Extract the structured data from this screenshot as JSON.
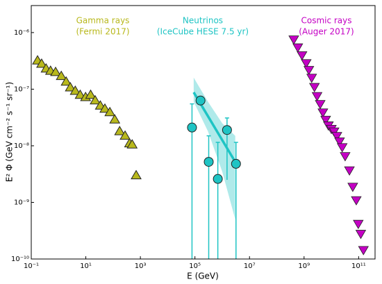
{
  "chart_data": {
    "type": "scatter",
    "xlabel": "E (GeV)",
    "ylabel": "E² Φ (GeV cm⁻² s⁻¹ sr⁻¹)",
    "log_x": true,
    "log_y": true,
    "xlim": [
      0.1,
      400000000000.0
    ],
    "ylim": [
      1e-10,
      3e-06
    ],
    "xticks": [
      {
        "value": 0.1,
        "label": "10⁻¹"
      },
      {
        "value": 10,
        "label": "10¹"
      },
      {
        "value": 1000,
        "label": "10³"
      },
      {
        "value": 100000,
        "label": "10⁵"
      },
      {
        "value": 10000000,
        "label": "10⁷"
      },
      {
        "value": 1000000000,
        "label": "10⁹"
      },
      {
        "value": 100000000000,
        "label": "10¹¹"
      }
    ],
    "yticks": [
      {
        "value": 1e-10,
        "label": "10⁻¹⁰"
      },
      {
        "value": 1e-09,
        "label": "10⁻⁹"
      },
      {
        "value": 1e-08,
        "label": "10⁻⁸"
      },
      {
        "value": 1e-07,
        "label": "10⁻⁷"
      },
      {
        "value": 1e-06,
        "label": "10⁻⁶"
      }
    ],
    "annotations": [
      {
        "lines": [
          "Gamma rays",
          "(Fermi 2017)"
        ],
        "color": "#b8b81c"
      },
      {
        "lines": [
          "Neutrinos",
          "(IceCube HESE 7.5 yr)"
        ],
        "color": "#1ec4c4"
      },
      {
        "lines": [
          "Cosmic rays",
          "(Auger 2017)"
        ],
        "color": "#c400c4"
      }
    ],
    "series": [
      {
        "marker": "triangle-up",
        "color": "#b8b81c",
        "x": [
          0.17,
          0.24,
          0.35,
          0.51,
          0.78,
          1.26,
          1.9,
          2.7,
          4.1,
          6.2,
          9.8,
          15,
          22,
          34,
          50,
          76,
          115,
          174,
          275,
          400,
          500,
          700
        ],
        "values": [
          3.2e-07,
          2.8e-07,
          2.3e-07,
          2.1e-07,
          2e-07,
          1.7e-07,
          1.35e-07,
          1.07e-07,
          9.3e-08,
          7.9e-08,
          7.2e-08,
          7.9e-08,
          6.3e-08,
          5.1e-08,
          4.5e-08,
          3.9e-08,
          2.9e-08,
          1.8e-08,
          1.5e-08,
          1.1e-08,
          1.05e-08,
          3e-09
        ]
      },
      {
        "marker": "circle",
        "color": "#1ec4c4",
        "x": [
          78000,
          160000,
          320000,
          690000,
          1500000,
          3200000
        ],
        "values": [
          2.1e-08,
          6.3e-08,
          5.2e-09,
          2.6e-09,
          1.9e-08,
          4.8e-09
        ],
        "upper": [
          5.5e-08,
          null,
          1.5e-08,
          1.15e-08,
          3.1e-08,
          1.15e-08
        ],
        "lower": [
          1e-10,
          null,
          1e-10,
          1e-10,
          2.5e-09,
          1e-10
        ],
        "fit": {
          "x": [
            90000,
            3000000
          ],
          "values": [
            8.8e-08,
            5.2e-09
          ]
        },
        "band": {
          "x": [
            90000,
            300000,
            1000000,
            3000000
          ],
          "upper": [
            1.6e-07,
            6e-08,
            2.5e-08,
            1.5e-08
          ],
          "lower": [
            6e-08,
            1.8e-08,
            3.5e-09,
            5e-10
          ]
        }
      },
      {
        "marker": "triangle-down",
        "color": "#c400c4",
        "x": [
          420000000,
          590000000,
          840000000,
          1200000000,
          1500000000,
          1900000000,
          2400000000,
          3000000000,
          3900000000,
          4900000000,
          6200000000,
          7800000000,
          10000000000,
          12600000000,
          16000000000,
          20000000000,
          25000000000,
          32000000000,
          46000000000,
          61000000000,
          82000000000,
          97000000000,
          120000000000,
          150000000000
        ],
        "values": [
          7.6e-07,
          5.5e-07,
          4e-07,
          2.9e-07,
          2.2e-07,
          1.6e-07,
          1.1e-07,
          7.6e-08,
          5.5e-08,
          3.9e-08,
          2.9e-08,
          2.3e-08,
          2e-08,
          1.8e-08,
          1.5e-08,
          1.2e-08,
          9.5e-09,
          6.6e-09,
          3.7e-09,
          1.9e-09,
          1.1e-09,
          4.2e-10,
          2.8e-10,
          1.45e-10
        ]
      }
    ]
  }
}
